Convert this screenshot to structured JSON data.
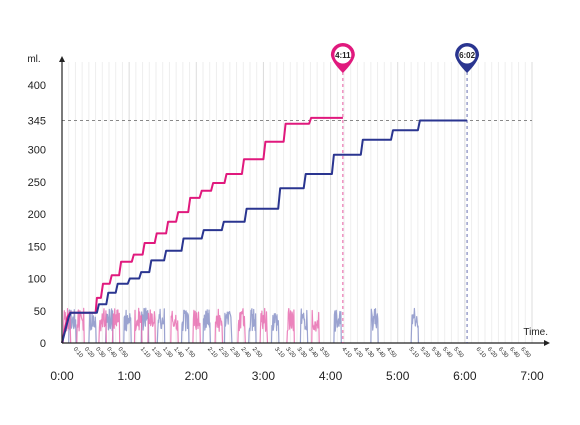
{
  "chart_data": {
    "type": "line",
    "ylabel": "ml.",
    "xlabel": "Time.",
    "ylim": [
      0,
      400
    ],
    "xlim": [
      0,
      7
    ],
    "y_ticks": [
      "0",
      "50",
      "100",
      "150",
      "200",
      "250",
      "300",
      "345",
      "400"
    ],
    "y_tick_values": [
      0,
      50,
      100,
      150,
      200,
      250,
      300,
      345,
      400
    ],
    "x_major_ticks": [
      "0:00",
      "1:00",
      "2:00",
      "3:00",
      "4:00",
      "5:00",
      "6:00",
      "7:00"
    ],
    "x_minor_ticks": [
      "0:10",
      "0:20",
      "0:30",
      "0:40",
      "0:50",
      "1:10",
      "1:20",
      "1:30",
      "1:40",
      "1:50",
      "2:10",
      "2:20",
      "2:30",
      "2:40",
      "2:50",
      "3:10",
      "3:20",
      "3:30",
      "3:40",
      "3:50",
      "4:10",
      "4:20",
      "4:30",
      "4:40",
      "4:50",
      "5:10",
      "5:20",
      "5:30",
      "5:40",
      "5:50",
      "6:10",
      "6:20",
      "6:30",
      "6:40",
      "6:50"
    ],
    "grid": "vertical",
    "reference_line": {
      "y": 345,
      "label": "345"
    },
    "markers": [
      {
        "label": "4:11",
        "x": 4.183,
        "color": "#e0197d"
      },
      {
        "label": "6:02",
        "x": 6.033,
        "color": "#2a3590"
      }
    ],
    "series": [
      {
        "color": "#e0197d",
        "x": [
          0,
          0.08,
          0.12,
          0.5,
          0.52,
          0.58,
          0.61,
          0.71,
          0.74,
          0.85,
          0.88,
          1.04,
          1.07,
          1.2,
          1.23,
          1.38,
          1.41,
          1.55,
          1.58,
          1.7,
          1.73,
          1.88,
          1.91,
          2.05,
          2.08,
          2.22,
          2.25,
          2.42,
          2.45,
          2.68,
          2.71,
          3.0,
          3.03,
          3.3,
          3.33,
          3.68,
          3.71,
          4.183
        ],
        "y": [
          0,
          40,
          47,
          47,
          70,
          70,
          92,
          92,
          105,
          105,
          126,
          126,
          137,
          137,
          155,
          155,
          170,
          170,
          188,
          188,
          203,
          203,
          225,
          225,
          236,
          236,
          248,
          248,
          262,
          262,
          285,
          285,
          312,
          312,
          340,
          340,
          349,
          349
        ]
      },
      {
        "color": "#2a3590",
        "x": [
          0,
          0.1,
          0.13,
          0.52,
          0.55,
          0.66,
          0.69,
          0.8,
          0.83,
          0.98,
          1.01,
          1.15,
          1.18,
          1.3,
          1.33,
          1.52,
          1.55,
          1.78,
          1.81,
          2.08,
          2.11,
          2.38,
          2.41,
          2.72,
          2.75,
          3.22,
          3.25,
          3.6,
          3.63,
          4.02,
          4.05,
          4.45,
          4.48,
          4.9,
          4.93,
          5.3,
          5.33,
          6.033
        ],
        "y": [
          0,
          40,
          47,
          47,
          60,
          60,
          78,
          78,
          92,
          92,
          100,
          100,
          110,
          110,
          128,
          128,
          143,
          143,
          162,
          162,
          175,
          175,
          188,
          188,
          208,
          208,
          240,
          240,
          262,
          262,
          292,
          292,
          315,
          315,
          330,
          330,
          345,
          345
        ]
      }
    ],
    "bursts_pink_x": [
      0.02,
      0.22,
      0.55,
      0.75,
      1.08,
      1.28,
      1.62,
      1.95,
      2.28,
      2.62,
      2.95,
      3.35,
      3.72
    ],
    "bursts_blue_x": [
      0.1,
      0.4,
      0.65,
      0.92,
      1.18,
      1.42,
      1.78,
      2.1,
      2.42,
      2.78,
      3.12,
      3.55,
      4.05,
      4.6,
      5.2
    ]
  }
}
